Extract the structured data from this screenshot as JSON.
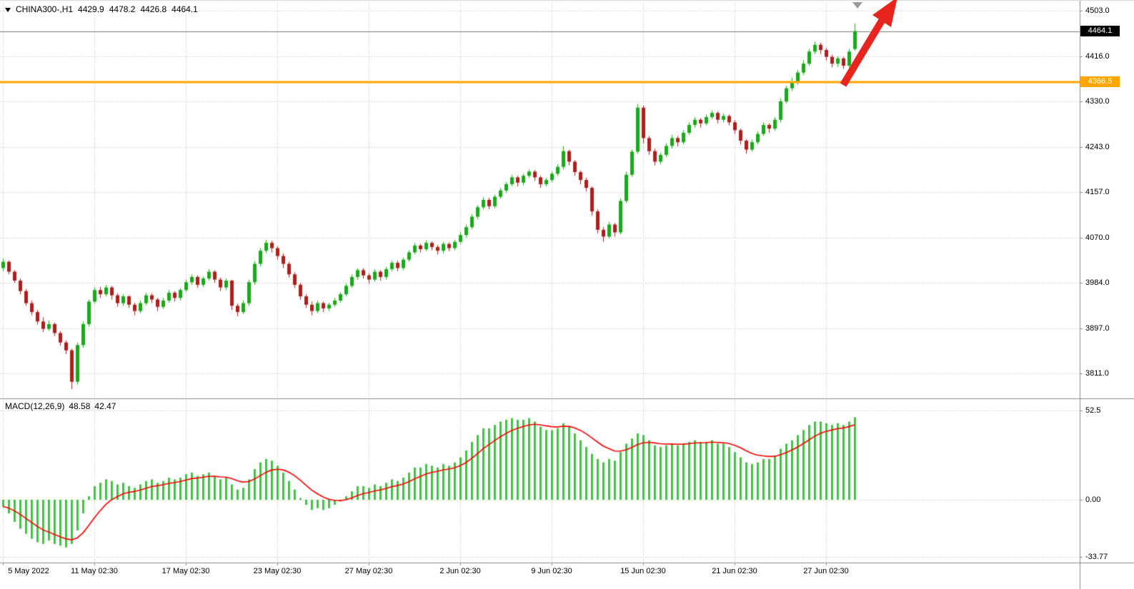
{
  "window": {
    "symbol_label": "CHINA300-,H1",
    "ohlc": {
      "open": "4429.9",
      "high": "4478.2",
      "low": "4426.8",
      "close": "4464.1"
    }
  },
  "indicator": {
    "name": "MACD(12,26,9)",
    "macd_value": "48.58",
    "signal_value": "42.47"
  },
  "price_axis": {
    "current_badge": "4464.1",
    "hline_badge": "4366.5"
  },
  "macd_axis": {
    "labels": [
      "52.5",
      "0.00",
      "-33.77"
    ]
  },
  "time_axis": {
    "labels": [
      "5 May 2022",
      "11 May 02:30",
      "17 May 02:30",
      "23 May 02:30",
      "27 May 02:30",
      "2 Jun 02:30",
      "9 Jun 02:30",
      "15 Jun 02:30",
      "21 Jun 02:30",
      "27 Jun 02:30"
    ]
  },
  "colors": {
    "background": "#ffffff",
    "grid": "#bdbdbd",
    "candle_up": "#1fa51f",
    "candle_down": "#a8231f",
    "macd_bar": "#32cd32",
    "macd_signal": "#ff0000",
    "hline": "#ffa500",
    "current_price_line": "#7a7a7a",
    "border": "#8c8c8c",
    "badge_current_bg": "#000000",
    "arrow": "#e8251d",
    "shift_marker": "#9a9a9a"
  },
  "chart_data": {
    "type": "candlestick",
    "symbol": "CHINA300-",
    "timeframe": "H1",
    "title": "CHINA300-,H1 4429.9 4478.2 4426.8 4464.1",
    "current_price": 4464.1,
    "horizontal_line": 4366.5,
    "price_gridlines": [
      4503,
      4416,
      4330,
      4243,
      4157,
      4070,
      3984,
      3897,
      3811
    ],
    "x_gridline_indices": [
      0,
      16,
      32,
      48,
      64,
      80,
      96,
      112,
      128,
      144
    ],
    "candles_ohlc": [
      [
        4012,
        4030,
        4006,
        4024
      ],
      [
        4024,
        4026,
        4000,
        4005
      ],
      [
        4005,
        4008,
        3984,
        3988
      ],
      [
        3988,
        3992,
        3962,
        3968
      ],
      [
        3968,
        3972,
        3940,
        3945
      ],
      [
        3945,
        3950,
        3922,
        3928
      ],
      [
        3928,
        3932,
        3904,
        3910
      ],
      [
        3910,
        3918,
        3890,
        3896
      ],
      [
        3896,
        3912,
        3892,
        3905
      ],
      [
        3905,
        3908,
        3882,
        3888
      ],
      [
        3888,
        3892,
        3864,
        3870
      ],
      [
        3870,
        3874,
        3848,
        3855
      ],
      [
        3855,
        3858,
        3781,
        3795
      ],
      [
        3795,
        3870,
        3790,
        3865
      ],
      [
        3865,
        3910,
        3860,
        3905
      ],
      [
        3905,
        3952,
        3900,
        3948
      ],
      [
        3948,
        3975,
        3944,
        3970
      ],
      [
        3970,
        3976,
        3955,
        3962
      ],
      [
        3962,
        3980,
        3958,
        3975
      ],
      [
        3975,
        3978,
        3952,
        3960
      ],
      [
        3960,
        3964,
        3938,
        3945
      ],
      [
        3945,
        3962,
        3940,
        3958
      ],
      [
        3958,
        3960,
        3936,
        3942
      ],
      [
        3942,
        3946,
        3922,
        3930
      ],
      [
        3930,
        3950,
        3926,
        3945
      ],
      [
        3945,
        3965,
        3941,
        3960
      ],
      [
        3960,
        3964,
        3945,
        3952
      ],
      [
        3952,
        3955,
        3930,
        3938
      ],
      [
        3938,
        3955,
        3934,
        3950
      ],
      [
        3950,
        3970,
        3946,
        3965
      ],
      [
        3965,
        3968,
        3948,
        3955
      ],
      [
        3955,
        3974,
        3950,
        3970
      ],
      [
        3970,
        3990,
        3966,
        3985
      ],
      [
        3985,
        4000,
        3980,
        3995
      ],
      [
        3995,
        3998,
        3974,
        3980
      ],
      [
        3980,
        3996,
        3976,
        3992
      ],
      [
        3992,
        4010,
        3988,
        4005
      ],
      [
        4005,
        4008,
        3984,
        3990
      ],
      [
        3990,
        3994,
        3968,
        3975
      ],
      [
        3975,
        3992,
        3970,
        3988
      ],
      [
        3988,
        3990,
        3932,
        3940
      ],
      [
        3940,
        3944,
        3920,
        3928
      ],
      [
        3928,
        3950,
        3924,
        3945
      ],
      [
        3945,
        3990,
        3940,
        3985
      ],
      [
        3985,
        4025,
        3980,
        4020
      ],
      [
        4020,
        4050,
        4015,
        4045
      ],
      [
        4045,
        4066,
        4040,
        4060
      ],
      [
        4060,
        4064,
        4042,
        4050
      ],
      [
        4050,
        4054,
        4028,
        4035
      ],
      [
        4035,
        4040,
        4012,
        4020
      ],
      [
        4020,
        4024,
        3994,
        4000
      ],
      [
        4000,
        4004,
        3974,
        3980
      ],
      [
        3980,
        3984,
        3952,
        3958
      ],
      [
        3958,
        3962,
        3936,
        3942
      ],
      [
        3942,
        3948,
        3922,
        3930
      ],
      [
        3930,
        3950,
        3926,
        3945
      ],
      [
        3945,
        3948,
        3928,
        3935
      ],
      [
        3935,
        3946,
        3930,
        3942
      ],
      [
        3942,
        3955,
        3938,
        3950
      ],
      [
        3950,
        3966,
        3946,
        3962
      ],
      [
        3962,
        3982,
        3958,
        3978
      ],
      [
        3978,
        4000,
        3974,
        3995
      ],
      [
        3995,
        4012,
        3990,
        4008
      ],
      [
        4008,
        4012,
        3992,
        3998
      ],
      [
        3998,
        4002,
        3982,
        3990
      ],
      [
        3990,
        4010,
        3986,
        4005
      ],
      [
        4005,
        4008,
        3988,
        3995
      ],
      [
        3995,
        4014,
        3990,
        4010
      ],
      [
        4010,
        4026,
        4006,
        4022
      ],
      [
        4022,
        4026,
        4006,
        4012
      ],
      [
        4012,
        4032,
        4008,
        4028
      ],
      [
        4028,
        4046,
        4024,
        4042
      ],
      [
        4042,
        4060,
        4038,
        4055
      ],
      [
        4055,
        4058,
        4042,
        4048
      ],
      [
        4048,
        4065,
        4044,
        4060
      ],
      [
        4060,
        4063,
        4046,
        4052
      ],
      [
        4052,
        4056,
        4038,
        4045
      ],
      [
        4045,
        4062,
        4040,
        4058
      ],
      [
        4058,
        4061,
        4044,
        4050
      ],
      [
        4050,
        4066,
        4046,
        4062
      ],
      [
        4062,
        4080,
        4058,
        4075
      ],
      [
        4075,
        4095,
        4070,
        4090
      ],
      [
        4090,
        4115,
        4086,
        4110
      ],
      [
        4110,
        4132,
        4105,
        4128
      ],
      [
        4128,
        4147,
        4124,
        4142
      ],
      [
        4142,
        4146,
        4124,
        4130
      ],
      [
        4130,
        4152,
        4126,
        4148
      ],
      [
        4148,
        4165,
        4144,
        4160
      ],
      [
        4160,
        4176,
        4155,
        4172
      ],
      [
        4172,
        4190,
        4168,
        4185
      ],
      [
        4185,
        4188,
        4168,
        4175
      ],
      [
        4175,
        4192,
        4170,
        4188
      ],
      [
        4188,
        4200,
        4184,
        4196
      ],
      [
        4196,
        4199,
        4178,
        4185
      ],
      [
        4185,
        4188,
        4165,
        4172
      ],
      [
        4172,
        4184,
        4168,
        4180
      ],
      [
        4180,
        4196,
        4176,
        4192
      ],
      [
        4192,
        4210,
        4188,
        4205
      ],
      [
        4205,
        4244,
        4200,
        4235
      ],
      [
        4235,
        4238,
        4208,
        4215
      ],
      [
        4215,
        4218,
        4188,
        4195
      ],
      [
        4195,
        4198,
        4172,
        4180
      ],
      [
        4180,
        4184,
        4158,
        4165
      ],
      [
        4165,
        4168,
        4112,
        4120
      ],
      [
        4120,
        4124,
        4078,
        4085
      ],
      [
        4085,
        4090,
        4062,
        4072
      ],
      [
        4072,
        4100,
        4068,
        4095
      ],
      [
        4095,
        4098,
        4072,
        4080
      ],
      [
        4080,
        4145,
        4076,
        4140
      ],
      [
        4140,
        4196,
        4136,
        4190
      ],
      [
        4190,
        4238,
        4186,
        4234
      ],
      [
        4234,
        4325,
        4230,
        4318
      ],
      [
        4318,
        4322,
        4250,
        4260
      ],
      [
        4260,
        4264,
        4228,
        4235
      ],
      [
        4235,
        4240,
        4208,
        4215
      ],
      [
        4215,
        4232,
        4210,
        4228
      ],
      [
        4228,
        4250,
        4224,
        4245
      ],
      [
        4245,
        4266,
        4240,
        4260
      ],
      [
        4260,
        4264,
        4244,
        4252
      ],
      [
        4252,
        4275,
        4248,
        4270
      ],
      [
        4270,
        4290,
        4266,
        4285
      ],
      [
        4285,
        4300,
        4280,
        4295
      ],
      [
        4295,
        4298,
        4280,
        4288
      ],
      [
        4288,
        4305,
        4284,
        4300
      ],
      [
        4300,
        4313,
        4296,
        4308
      ],
      [
        4308,
        4311,
        4288,
        4295
      ],
      [
        4295,
        4307,
        4290,
        4302
      ],
      [
        4302,
        4305,
        4284,
        4290
      ],
      [
        4290,
        4294,
        4268,
        4275
      ],
      [
        4275,
        4278,
        4248,
        4255
      ],
      [
        4255,
        4258,
        4230,
        4238
      ],
      [
        4238,
        4257,
        4234,
        4252
      ],
      [
        4252,
        4273,
        4248,
        4268
      ],
      [
        4268,
        4290,
        4264,
        4285
      ],
      [
        4285,
        4288,
        4270,
        4278
      ],
      [
        4278,
        4300,
        4274,
        4295
      ],
      [
        4295,
        4336,
        4290,
        4330
      ],
      [
        4330,
        4360,
        4326,
        4355
      ],
      [
        4355,
        4375,
        4350,
        4368
      ],
      [
        4368,
        4390,
        4362,
        4385
      ],
      [
        4385,
        4408,
        4380,
        4402
      ],
      [
        4402,
        4430,
        4398,
        4425
      ],
      [
        4425,
        4444,
        4420,
        4438
      ],
      [
        4438,
        4442,
        4420,
        4428
      ],
      [
        4428,
        4432,
        4408,
        4415
      ],
      [
        4415,
        4419,
        4395,
        4402
      ],
      [
        4402,
        4416,
        4396,
        4412
      ],
      [
        4412,
        4415,
        4392,
        4398
      ],
      [
        4398,
        4430,
        4394,
        4425
      ],
      [
        4429.9,
        4478.2,
        4426.8,
        4464.1
      ]
    ],
    "macd": {
      "name": "MACD(12,26,9)",
      "last_macd": 48.58,
      "last_signal": 42.47,
      "axis_levels": [
        52.5,
        0,
        -33.77
      ],
      "histogram": [
        -4,
        -8,
        -13,
        -17,
        -20,
        -23,
        -25,
        -26,
        -24,
        -26,
        -27,
        -28,
        -26,
        -18,
        -8,
        2,
        8,
        10,
        12,
        11,
        9,
        10,
        8,
        7,
        9,
        11,
        12,
        10,
        11,
        13,
        12,
        13,
        15,
        16,
        14,
        15,
        16,
        14,
        12,
        13,
        9,
        6,
        7,
        12,
        18,
        22,
        24,
        23,
        20,
        16,
        11,
        6,
        1,
        -3,
        -6,
        -5,
        -6,
        -5,
        -3,
        -1,
        2,
        5,
        8,
        8,
        7,
        9,
        8,
        10,
        12,
        11,
        13,
        16,
        19,
        19,
        21,
        20,
        19,
        21,
        20,
        22,
        25,
        29,
        34,
        38,
        42,
        42,
        44,
        46,
        47,
        48,
        47,
        47,
        48,
        46,
        43,
        41,
        41,
        42,
        45,
        43,
        39,
        35,
        31,
        27,
        24,
        22,
        24,
        23,
        28,
        33,
        36,
        39,
        38,
        35,
        32,
        31,
        32,
        33,
        32,
        33,
        34,
        35,
        34,
        34,
        35,
        33,
        33,
        31,
        28,
        25,
        22,
        21,
        22,
        24,
        24,
        26,
        30,
        33,
        35,
        38,
        41,
        44,
        46,
        46,
        45,
        44,
        45,
        44,
        46,
        48.58
      ]
    }
  }
}
